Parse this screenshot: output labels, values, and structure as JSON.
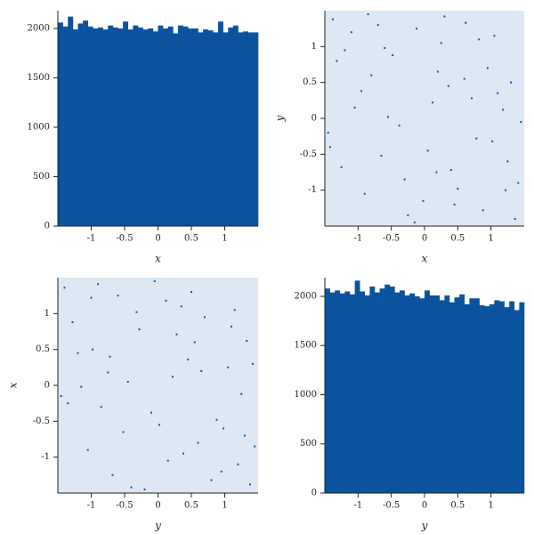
{
  "chart_data": [
    {
      "type": "histogram",
      "xlabel": "x",
      "color": "#0b539f",
      "bins": [
        -1.5,
        -1.425,
        -1.35,
        -1.275,
        -1.2,
        -1.125,
        -1.05,
        -0.975,
        -0.9,
        -0.825,
        -0.75,
        -0.675,
        -0.6,
        -0.525,
        -0.45,
        -0.375,
        -0.3,
        -0.225,
        -0.15,
        -0.075,
        0,
        0.075,
        0.15,
        0.225,
        0.3,
        0.375,
        0.45,
        0.525,
        0.6,
        0.675,
        0.75,
        0.825,
        0.9,
        0.975,
        1.05,
        1.125,
        1.2,
        1.275,
        1.35,
        1.425,
        1.5
      ],
      "values": [
        2060,
        2020,
        2120,
        1990,
        2050,
        2080,
        2020,
        2000,
        2010,
        1990,
        2030,
        2010,
        2000,
        2070,
        1990,
        2030,
        2010,
        1990,
        2000,
        1970,
        2030,
        2000,
        2020,
        1950,
        2030,
        2020,
        2000,
        2000,
        1960,
        1990,
        1980,
        1960,
        2070,
        1960,
        2010,
        2030,
        1960,
        1970,
        1960,
        1960
      ],
      "xlim": [
        -1.5,
        1.5
      ],
      "ylim": [
        0,
        2180
      ],
      "xticks": [
        -1,
        -0.5,
        0,
        0.5,
        1
      ],
      "yticks": [
        0,
        500,
        1000,
        1500,
        2000
      ]
    },
    {
      "type": "scatter",
      "xlabel": "x",
      "ylabel": "y",
      "color": "#0b539f",
      "x": [
        -1.32,
        0.45,
        1.1,
        -0.7,
        0.05,
        1.41,
        -1.05,
        0.82,
        -0.25,
        0.6,
        -1.45,
        0.3,
        1.25,
        -0.55,
        -0.9,
        0.95,
        -0.12,
        1.36,
        -1.2,
        0.18,
        0.71,
        -0.38,
        -1.38,
        1.02,
        0.5,
        -0.8,
        0.25,
        -0.02,
        1.18,
        -0.65,
        -1.1,
        0.88,
        0.36,
        -0.48,
        1.45,
        -0.3,
        0.62,
        -1.25,
        0.12,
        -0.85,
        1.3,
        -0.15,
        0.78,
        -0.6,
        1.05,
        -1.42,
        0.4,
        -0.95,
        0.2,
        1.22
      ],
      "y": [
        0.8,
        -1.2,
        0.35,
        1.3,
        -0.45,
        -0.9,
        0.15,
        1.1,
        -1.35,
        0.55,
        -0.2,
        1.42,
        -0.6,
        0.02,
        -1.05,
        0.7,
        1.25,
        -1.4,
        0.95,
        -0.75,
        0.28,
        -0.1,
        1.38,
        -0.32,
        -0.98,
        0.6,
        1.05,
        -1.15,
        0.12,
        -0.52,
        1.2,
        -1.28,
        0.45,
        0.88,
        -0.05,
        -0.85,
        1.33,
        -0.68,
        0.22,
        1.45,
        0.5,
        -1.45,
        -0.28,
        0.98,
        1.15,
        -0.4,
        -0.72,
        0.38,
        0.65,
        -1.0
      ],
      "xlim": [
        -1.5,
        1.5
      ],
      "ylim": [
        -1.5,
        1.5
      ],
      "xticks": [
        -1,
        -0.5,
        0,
        0.5,
        1
      ],
      "yticks": [
        -1,
        -0.5,
        0,
        0.5,
        1
      ]
    },
    {
      "type": "scatter",
      "xlabel": "y",
      "ylabel": "x",
      "color": "#0b539f",
      "x": [
        0.8,
        -1.2,
        0.35,
        1.3,
        -0.45,
        -0.9,
        0.15,
        1.1,
        -1.35,
        0.55,
        -0.2,
        1.42,
        -0.6,
        0.02,
        -1.05,
        0.7,
        1.25,
        -1.4,
        0.95,
        -0.75,
        0.28,
        -0.1,
        1.38,
        -0.32,
        -0.98,
        0.6,
        1.05,
        -1.15,
        0.12,
        -0.52,
        1.2,
        -1.28,
        0.45,
        0.88,
        -0.05,
        -0.85,
        1.33,
        -0.68,
        0.22,
        1.45,
        0.5,
        -1.45,
        -0.28,
        0.98,
        1.15,
        -0.4,
        -0.72,
        0.38,
        0.65,
        -1.0
      ],
      "y": [
        -1.32,
        0.45,
        1.1,
        -0.7,
        0.05,
        1.41,
        -1.05,
        0.82,
        -0.25,
        0.6,
        -1.45,
        0.3,
        1.25,
        -0.55,
        -0.9,
        0.95,
        -0.12,
        1.36,
        -1.2,
        0.18,
        0.71,
        -0.38,
        -1.38,
        1.02,
        0.5,
        -0.8,
        0.25,
        -0.02,
        1.18,
        -0.65,
        -1.1,
        0.88,
        0.36,
        -0.48,
        1.45,
        -0.3,
        0.62,
        -1.25,
        0.12,
        -0.85,
        1.3,
        -0.15,
        0.78,
        -0.6,
        1.05,
        -1.42,
        0.4,
        -0.95,
        0.2,
        1.22
      ],
      "xlim": [
        -1.5,
        1.5
      ],
      "ylim": [
        -1.5,
        1.5
      ],
      "xticks": [
        -1,
        -0.5,
        0,
        0.5,
        1
      ],
      "yticks": [
        -1,
        -0.5,
        0,
        0.5,
        1
      ]
    },
    {
      "type": "histogram",
      "xlabel": "y",
      "color": "#0b539f",
      "bins": [
        -1.5,
        -1.425,
        -1.35,
        -1.275,
        -1.2,
        -1.125,
        -1.05,
        -0.975,
        -0.9,
        -0.825,
        -0.75,
        -0.675,
        -0.6,
        -0.525,
        -0.45,
        -0.375,
        -0.3,
        -0.225,
        -0.15,
        -0.075,
        0,
        0.075,
        0.15,
        0.225,
        0.3,
        0.375,
        0.45,
        0.525,
        0.6,
        0.675,
        0.75,
        0.825,
        0.9,
        0.975,
        1.05,
        1.125,
        1.2,
        1.275,
        1.35,
        1.425,
        1.5
      ],
      "values": [
        2080,
        2040,
        2060,
        2030,
        2050,
        2020,
        2160,
        2050,
        2010,
        2100,
        2040,
        2080,
        2120,
        2100,
        2040,
        2060,
        2010,
        2030,
        2000,
        1980,
        2060,
        2010,
        2010,
        1960,
        2010,
        1940,
        1990,
        2020,
        1920,
        1980,
        1980,
        1910,
        1900,
        1920,
        1960,
        1950,
        1890,
        1950,
        1860,
        1940
      ],
      "xlim": [
        -1.5,
        1.5
      ],
      "ylim": [
        0,
        2190
      ],
      "xticks": [
        -1,
        -0.5,
        0,
        0.5,
        1
      ],
      "yticks": [
        0,
        500,
        1000,
        1500,
        2000
      ]
    }
  ]
}
